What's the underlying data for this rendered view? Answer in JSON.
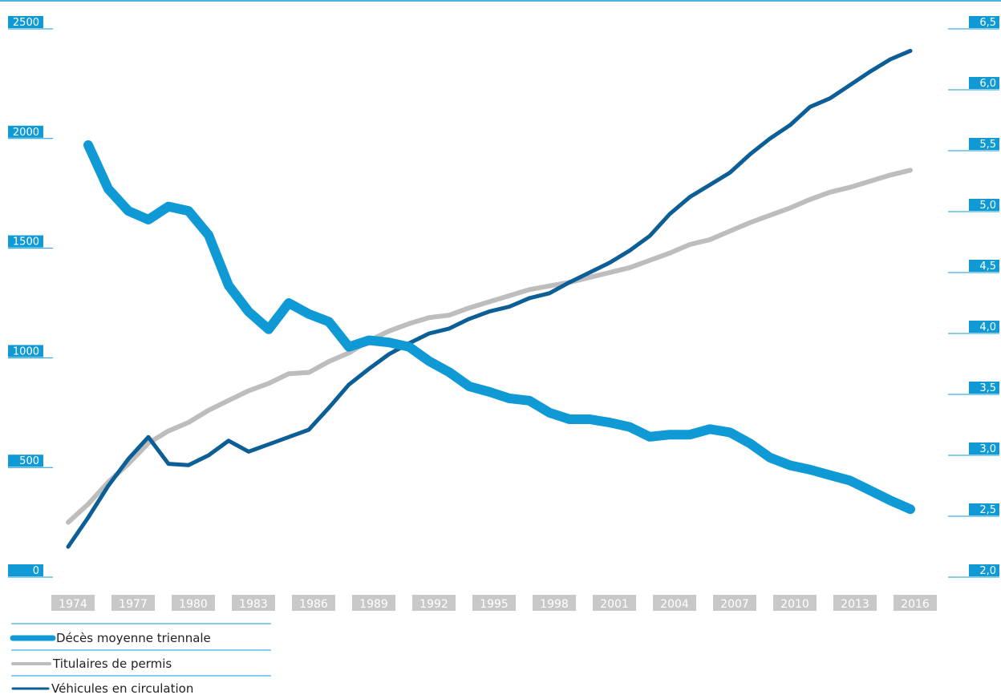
{
  "colors": {
    "deaths": "#0f9ad6",
    "licence_holders": "#bdbdbd",
    "vehicles": "#0b5e96",
    "tick_box_left": "#0f9ad6",
    "tick_box_right": "#0f9ad6",
    "x_tick_box": "#c8c8c8",
    "axis_line": "#0f9ad6",
    "legend_rule": "#0f9ad6"
  },
  "chart_data": {
    "type": "line",
    "left_axis": {
      "ticks": [
        "0",
        "500",
        "1000",
        "1500",
        "2000",
        "2500"
      ],
      "range": [
        0,
        2500
      ]
    },
    "right_axis": {
      "ticks": [
        "2,0",
        "2,5",
        "3,0",
        "3,5",
        "4,0",
        "4,5",
        "5,0",
        "5,5",
        "6,0",
        "6,5"
      ],
      "range": [
        2.0,
        6.5
      ]
    },
    "x_axis": {
      "range": [
        1974,
        2017
      ],
      "ticks": [
        "1974",
        "1977",
        "1980",
        "1983",
        "1986",
        "1989",
        "1992",
        "1995",
        "1998",
        "2001",
        "2004",
        "2007",
        "2010",
        "2013",
        "2016"
      ]
    },
    "legend": [
      "Décès moyenne triennale",
      "Titulaires de permis",
      "Véhicules en circulation"
    ],
    "series": [
      {
        "name": "Décès moyenne triennale",
        "axis": "left",
        "x": [
          1975,
          1976,
          1977,
          1978,
          1979,
          1980,
          1981,
          1982,
          1983,
          1984,
          1985,
          1986,
          1987,
          1988,
          1989,
          1990,
          1991,
          1992,
          1993,
          1994,
          1995,
          1996,
          1997,
          1998,
          1999,
          2000,
          2001,
          2002,
          2003,
          2004,
          2005,
          2006,
          2007,
          2008,
          2009,
          2010,
          2011,
          2012,
          2013,
          2014,
          2015,
          2016
        ],
        "values": [
          1970,
          1770,
          1670,
          1630,
          1690,
          1670,
          1560,
          1330,
          1210,
          1130,
          1250,
          1200,
          1165,
          1050,
          1080,
          1070,
          1050,
          985,
          935,
          870,
          845,
          815,
          805,
          750,
          720,
          720,
          705,
          685,
          640,
          650,
          650,
          675,
          660,
          610,
          545,
          510,
          490,
          465,
          440,
          395,
          350,
          310
        ]
      },
      {
        "name": "Titulaires de permis",
        "axis": "right",
        "x": [
          1974,
          1975,
          1976,
          1977,
          1978,
          1979,
          1980,
          1981,
          1982,
          1983,
          1984,
          1985,
          1986,
          1987,
          1988,
          1989,
          1990,
          1991,
          1992,
          1993,
          1994,
          1995,
          1996,
          1997,
          1998,
          1999,
          2000,
          2001,
          2002,
          2003,
          2004,
          2005,
          2006,
          2007,
          2008,
          2009,
          2010,
          2011,
          2012,
          2013,
          2014,
          2015,
          2016
        ],
        "values": [
          2.45,
          2.6,
          2.78,
          2.93,
          3.1,
          3.2,
          3.27,
          3.37,
          3.45,
          3.53,
          3.59,
          3.67,
          3.68,
          3.77,
          3.84,
          3.94,
          4.02,
          4.08,
          4.13,
          4.15,
          4.21,
          4.26,
          4.31,
          4.36,
          4.39,
          4.42,
          4.46,
          4.5,
          4.54,
          4.6,
          4.66,
          4.73,
          4.77,
          4.84,
          4.91,
          4.97,
          5.03,
          5.1,
          5.16,
          5.2,
          5.25,
          5.3,
          5.34
        ]
      },
      {
        "name": "Véhicules en circulation",
        "axis": "right",
        "x": [
          1974,
          1975,
          1976,
          1977,
          1978,
          1979,
          1980,
          1981,
          1982,
          1983,
          1984,
          1985,
          1986,
          1987,
          1988,
          1989,
          1990,
          1991,
          1992,
          1993,
          1994,
          1995,
          1996,
          1997,
          1998,
          1999,
          2000,
          2001,
          2002,
          2003,
          2004,
          2005,
          2006,
          2007,
          2008,
          2009,
          2010,
          2011,
          2012,
          2013,
          2014,
          2015,
          2016
        ],
        "values": [
          2.25,
          2.49,
          2.75,
          2.97,
          3.15,
          2.93,
          2.92,
          3.0,
          3.12,
          3.03,
          3.09,
          3.15,
          3.21,
          3.39,
          3.58,
          3.71,
          3.83,
          3.92,
          4.0,
          4.04,
          4.12,
          4.18,
          4.22,
          4.29,
          4.33,
          4.42,
          4.5,
          4.58,
          4.68,
          4.8,
          4.98,
          5.12,
          5.22,
          5.32,
          5.47,
          5.6,
          5.71,
          5.86,
          5.93,
          6.04,
          6.15,
          6.25,
          6.32
        ]
      }
    ]
  }
}
